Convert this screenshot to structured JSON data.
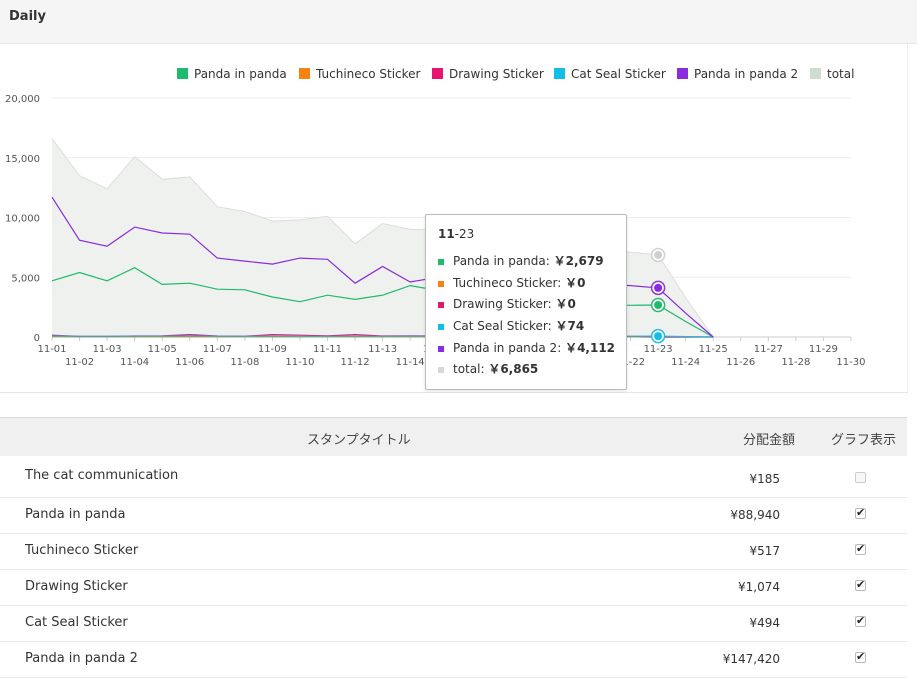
{
  "header": {
    "title": "Daily"
  },
  "colors": {
    "panda": "#1fba6b",
    "tuchineco": "#f7820f",
    "drawing": "#e4166d",
    "catseal": "#12bde8",
    "panda2": "#8a2be2",
    "total": "#cfdccf"
  },
  "chart_data": {
    "type": "line",
    "x": [
      "11-01",
      "11-02",
      "11-03",
      "11-04",
      "11-05",
      "11-06",
      "11-07",
      "11-08",
      "11-09",
      "11-10",
      "11-11",
      "11-12",
      "11-13",
      "11-14",
      "11-15",
      "11-16",
      "11-17",
      "11-18",
      "11-19",
      "11-20",
      "11-21",
      "11-22",
      "11-23",
      "11-24",
      "11-25",
      "11-26",
      "11-27",
      "11-28",
      "11-29",
      "11-30"
    ],
    "yticks": [
      "0",
      "5,000",
      "10,000",
      "15,000",
      "20,000"
    ],
    "ylim": [
      0,
      20000
    ],
    "series": [
      {
        "name": "Panda in panda",
        "key": "panda",
        "type": "line",
        "values": [
          4700,
          5400,
          4700,
          5800,
          4400,
          4500,
          4000,
          3950,
          3350,
          2950,
          3500,
          3150,
          3500,
          4300,
          3900,
          3500,
          3200,
          3100,
          3000,
          2900,
          2700,
          2650,
          2679,
          1300,
          0,
          null,
          null,
          null,
          null,
          null
        ]
      },
      {
        "name": "Tuchineco Sticker",
        "key": "tuchineco",
        "type": "line",
        "values": [
          20,
          10,
          10,
          10,
          10,
          10,
          10,
          10,
          10,
          10,
          10,
          10,
          10,
          10,
          10,
          10,
          10,
          10,
          10,
          10,
          10,
          10,
          0,
          0,
          0,
          null,
          null,
          null,
          null,
          null
        ]
      },
      {
        "name": "Drawing Sticker",
        "key": "drawing",
        "type": "line",
        "values": [
          150,
          50,
          60,
          80,
          100,
          200,
          80,
          70,
          200,
          150,
          100,
          200,
          80,
          90,
          80,
          70,
          60,
          60,
          60,
          60,
          60,
          60,
          0,
          0,
          0,
          null,
          null,
          null,
          null,
          null
        ]
      },
      {
        "name": "Cat Seal Sticker",
        "key": "catseal",
        "type": "line",
        "values": [
          80,
          60,
          60,
          70,
          70,
          80,
          70,
          60,
          70,
          60,
          60,
          70,
          60,
          70,
          60,
          60,
          60,
          60,
          60,
          60,
          60,
          60,
          74,
          30,
          0,
          null,
          null,
          null,
          null,
          null
        ]
      },
      {
        "name": "Panda in panda 2",
        "key": "panda2",
        "type": "line",
        "values": [
          11700,
          8100,
          7600,
          9200,
          8700,
          8600,
          6600,
          6350,
          6100,
          6600,
          6500,
          4500,
          5900,
          4600,
          5000,
          5000,
          4800,
          4600,
          4500,
          4500,
          4400,
          4300,
          4112,
          2000,
          0,
          null,
          null,
          null,
          null,
          null
        ]
      },
      {
        "name": "total",
        "key": "total",
        "type": "area",
        "values": [
          16600,
          13500,
          12400,
          15100,
          13200,
          13400,
          10900,
          10500,
          9700,
          9800,
          10100,
          7800,
          9500,
          9000,
          9000,
          8900,
          8400,
          8000,
          7800,
          7600,
          7400,
          7100,
          6865,
          3300,
          0,
          null,
          null,
          null,
          null,
          null
        ]
      }
    ],
    "legend": "top-right",
    "grid": true
  },
  "tooltip": {
    "title_a": "11",
    "title_b": "-23",
    "rows": [
      {
        "label": "Panda in panda:",
        "value": "￥2,679",
        "key": "panda"
      },
      {
        "label": "Tuchineco Sticker:",
        "value": "￥0",
        "key": "tuchineco"
      },
      {
        "label": "Drawing Sticker:",
        "value": "￥0",
        "key": "drawing"
      },
      {
        "label": "Cat Seal Sticker:",
        "value": "￥74",
        "key": "catseal"
      },
      {
        "label": "Panda in panda 2:",
        "value": "￥4,112",
        "key": "panda2"
      },
      {
        "label": "total:",
        "value": "￥6,865",
        "key": "total"
      }
    ]
  },
  "table": {
    "headers": {
      "title": "スタンプタイトル",
      "amount": "分配金額",
      "graph": "グラフ表示"
    },
    "rows": [
      {
        "name": "The cat communication",
        "amount": "¥185",
        "checked": false
      },
      {
        "name": "Panda in panda",
        "amount": "¥88,940",
        "checked": true
      },
      {
        "name": "Tuchineco Sticker",
        "amount": "¥517",
        "checked": true
      },
      {
        "name": "Drawing Sticker",
        "amount": "¥1,074",
        "checked": true
      },
      {
        "name": "Cat Seal Sticker",
        "amount": "¥494",
        "checked": true
      },
      {
        "name": "Panda in panda 2",
        "amount": "¥147,420",
        "checked": true
      }
    ]
  }
}
